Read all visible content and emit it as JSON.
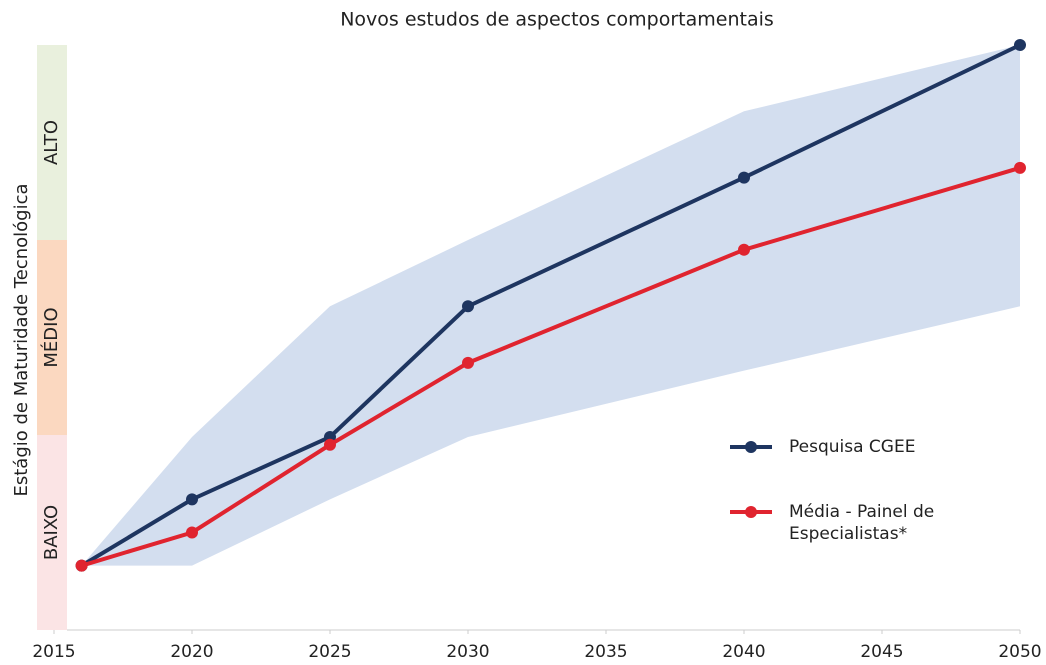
{
  "chart_data": {
    "type": "line",
    "title": "Novos estudos de aspectos comportamentais",
    "y_label": "Estágio de Maturidade Tecnológica",
    "x": [
      2016,
      2020,
      2025,
      2030,
      2040,
      2050
    ],
    "xlim": [
      2015,
      2050
    ],
    "xticks": [
      2015,
      2020,
      2025,
      2030,
      2035,
      2040,
      2045,
      2050
    ],
    "ylim": [
      0,
      3
    ],
    "stages": [
      {
        "label": "BAIXO",
        "range": [
          0,
          1
        ],
        "color": "#fbe4e5"
      },
      {
        "label": "MÉDIO",
        "range": [
          1,
          2
        ],
        "color": "#fbd8c0"
      },
      {
        "label": "ALTO",
        "range": [
          2,
          3
        ],
        "color": "#e9f0dd"
      }
    ],
    "range_area": {
      "color": "#d3deef",
      "upper": [
        0.33,
        0.99,
        1.66,
        2.0,
        2.66,
        3.0
      ],
      "lower": [
        0.33,
        0.33,
        0.67,
        0.99,
        1.33,
        1.66
      ]
    },
    "series": [
      {
        "name": "Pesquisa CGEE",
        "color": "#1e3560",
        "values": [
          0.33,
          0.67,
          0.99,
          1.66,
          2.32,
          3.0
        ]
      },
      {
        "name": "Média - Painel de Especialistas*",
        "color": "#e0242f",
        "values": [
          0.33,
          0.5,
          0.95,
          1.37,
          1.95,
          2.37
        ]
      }
    ]
  }
}
